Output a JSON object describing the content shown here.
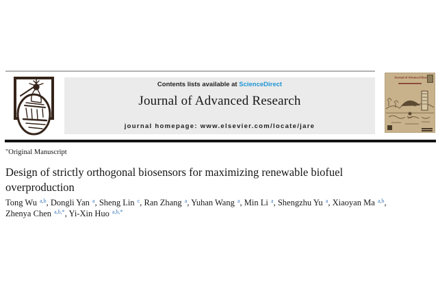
{
  "header": {
    "contents_prefix": "Contents lists available at ",
    "sciencedirect_link": "ScienceDirect",
    "journal_title": "Journal of Advanced Research",
    "homepage_prefix": "journal homepage: ",
    "homepage_url": "www.elsevier.com/locate/jare"
  },
  "cover": {
    "title": "Journal of Advanced Research"
  },
  "article": {
    "type_label": "\"Original Manuscript",
    "title": "Design of strictly orthogonal biosensors for maximizing renewable biofuel overproduction",
    "authors_line1": [
      {
        "name": "Tong Wu",
        "sup": "a,b"
      },
      {
        "name": "Dongli Yan",
        "sup": "a"
      },
      {
        "name": "Sheng Lin",
        "sup": "c"
      },
      {
        "name": "Ran Zhang",
        "sup": "a"
      },
      {
        "name": "Yuhan Wang",
        "sup": "a"
      },
      {
        "name": "Min Li",
        "sup": "a"
      },
      {
        "name": "Shengzhu Yu",
        "sup": "a"
      },
      {
        "name": "Xiaoyan Ma",
        "sup": "a,b"
      }
    ],
    "authors_line2": [
      {
        "name": "Zhenya Chen",
        "sup": "a,b,*"
      },
      {
        "name": "Yi-Xin Huo",
        "sup": "a,b,*"
      }
    ]
  },
  "colors": {
    "accent_blue": "#2095d5",
    "sup_blue": "#3a77b8",
    "panel_gray": "#ebebeb",
    "rule_gray": "#b2b2b2",
    "rule_black": "#141414",
    "logo_brown": "#35241a",
    "cover_tan": "#c8b28c",
    "cover_maroon": "#7b2a20",
    "cover_ink": "#6f5a3e"
  }
}
